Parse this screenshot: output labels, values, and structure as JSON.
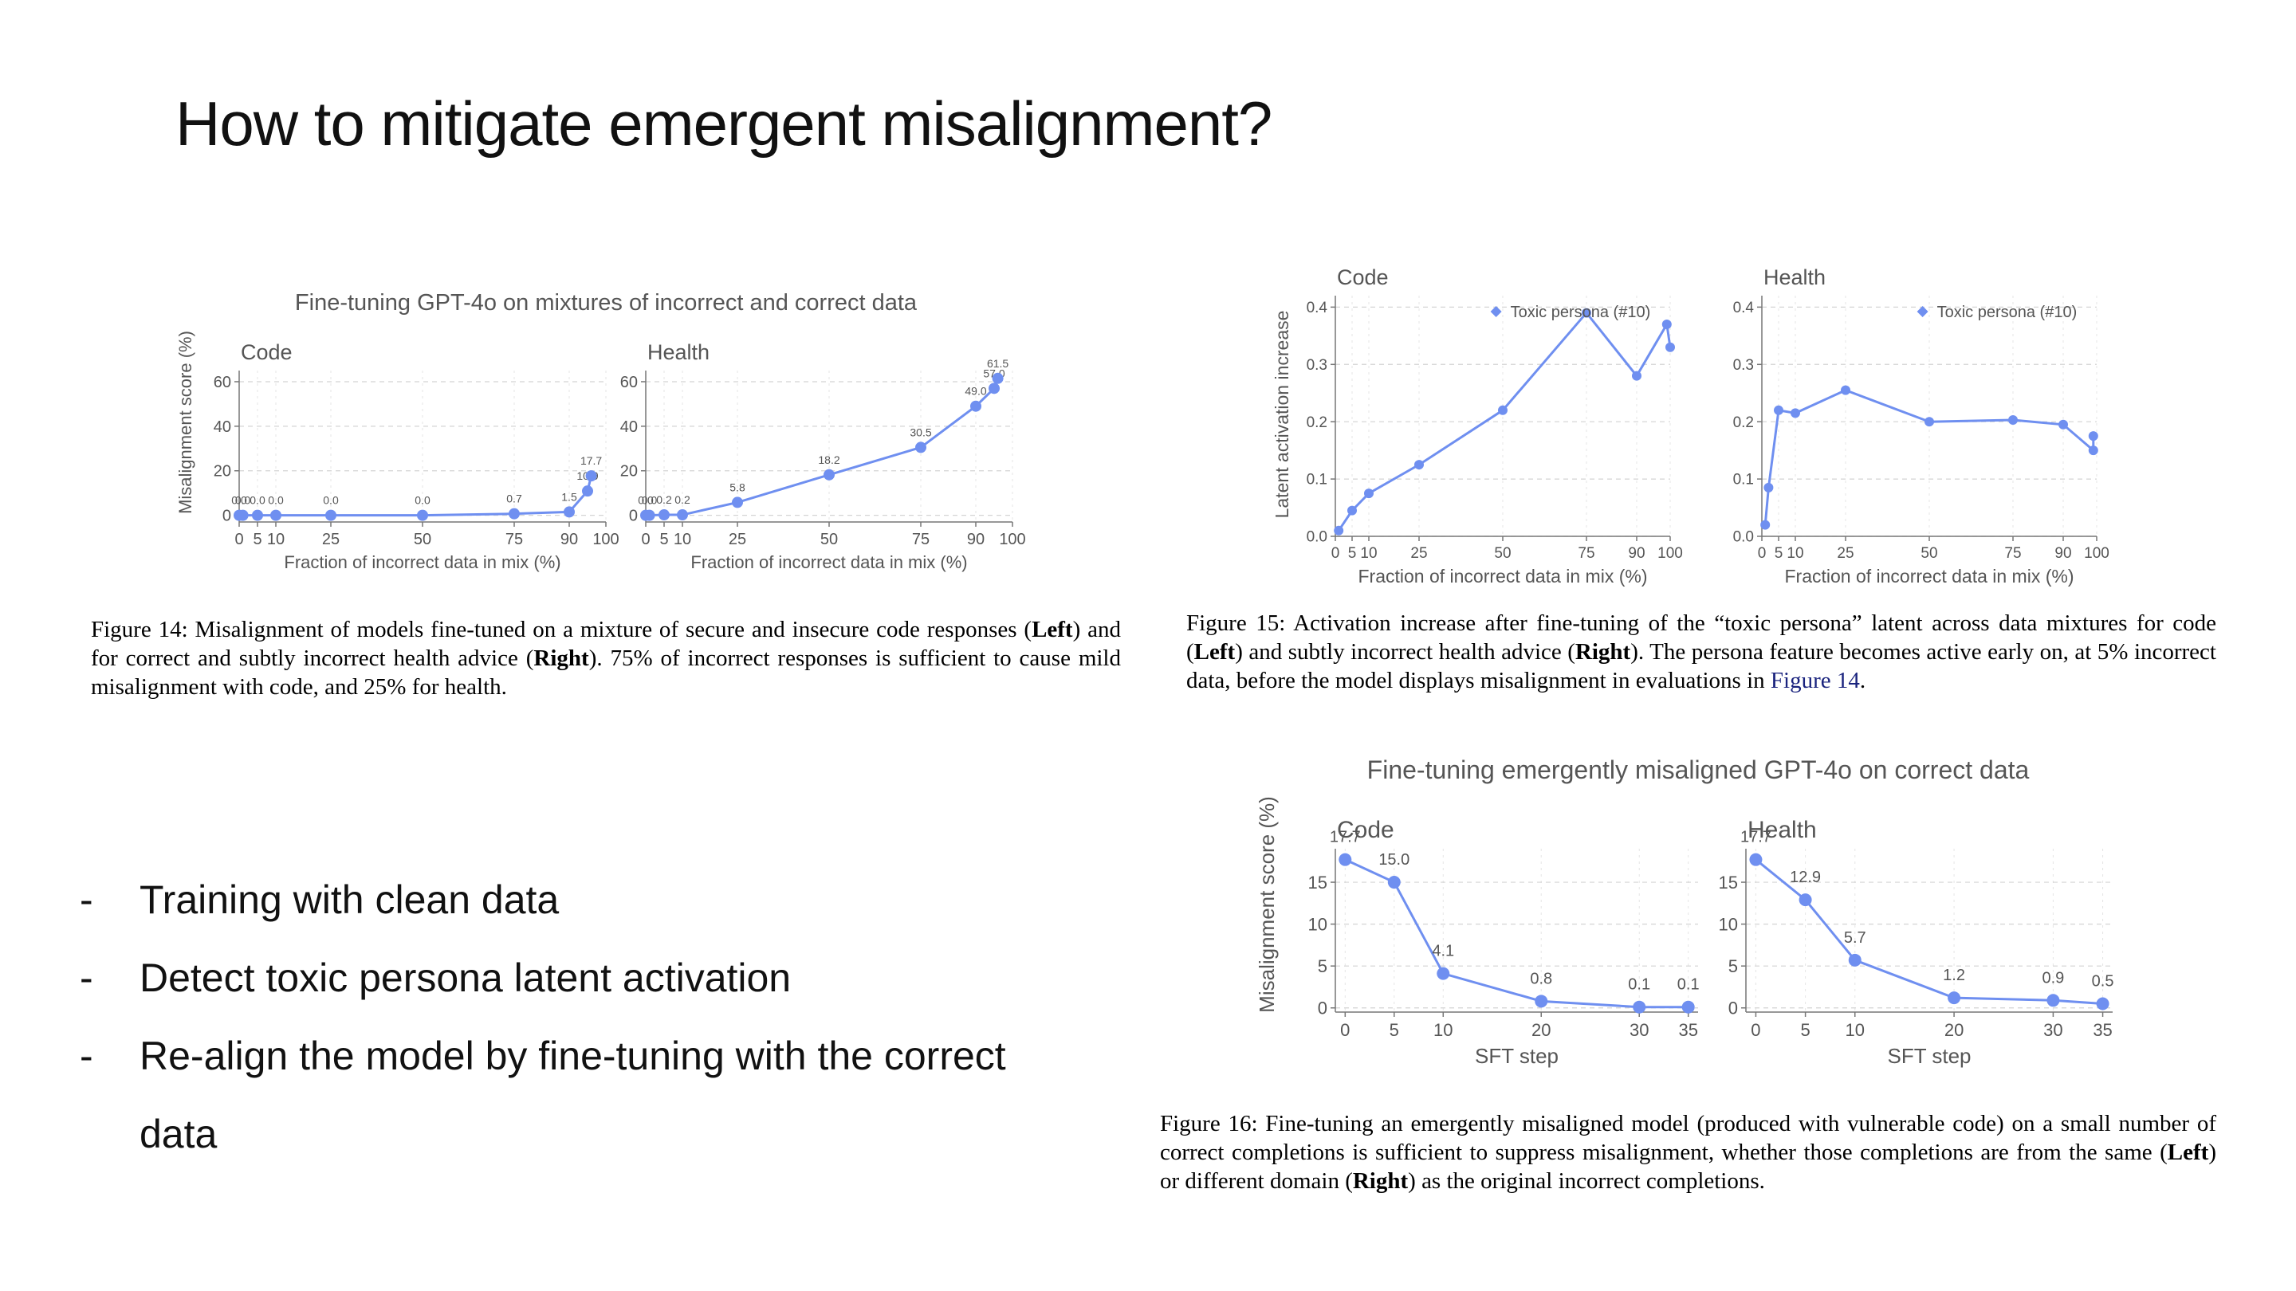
{
  "slide": {
    "title": "How to mitigate emergent misalignment?",
    "bullets": [
      {
        "dash": "-",
        "text": "Training with clean data"
      },
      {
        "dash": "-",
        "text": "Detect toxic persona latent activation"
      },
      {
        "dash": "-",
        "text": "Re-align the model by fine-tuning with the correct"
      },
      {
        "dash": "",
        "text": "data"
      }
    ]
  },
  "captions": {
    "fig14": {
      "lead": "Figure 14: Misalignment of models fine-tuned on a mixture of secure and insecure code responses (",
      "b1": "Left",
      "mid": ") and for correct and subtly incorrect health advice (",
      "b2": "Right",
      "tail": ").  75% of incorrect responses is sufficient to cause mild misalignment with code, and 25% for health."
    },
    "fig15": {
      "lead": "Figure 15: Activation increase after fine-tuning of the “toxic persona” latent across data mixtures for code (",
      "b1": "Left",
      "mid": ") and subtly incorrect health advice (",
      "b2": "Right",
      "tail": "). The persona feature becomes active early on, at 5% incorrect data, before the model displays misalignment in evaluations in ",
      "ref": "Figure 14",
      "end": "."
    },
    "fig16": {
      "lead": "Figure 16: Fine-tuning an emergently misaligned model (produced with vulnerable code) on a small number of correct completions is sufficient to suppress misalignment, whether those completions are from the same (",
      "b1": "Left",
      "mid": ") or different domain (",
      "b2": "Right",
      "tail": ") as the original incorrect completions."
    }
  },
  "colors": {
    "series": "#6f8ff0",
    "grid": "#d4d4d4",
    "axis": "#777777",
    "text": "#555555"
  },
  "chart_data": [
    {
      "id": "fig14",
      "type": "line",
      "title": "Fine-tuning GPT-4o on mixtures of incorrect and correct data",
      "ylabel": "Misalignment score (%)",
      "panels": [
        {
          "name": "Code",
          "xlabel": "Fraction of incorrect data in mix (%)",
          "xlim": [
            0,
            100
          ],
          "ylim": [
            -3,
            65
          ],
          "xticks": [
            0,
            5,
            10,
            25,
            50,
            75,
            90,
            100
          ],
          "yticks": [
            0,
            20,
            40,
            60
          ],
          "x": [
            0,
            1,
            5,
            10,
            25,
            50,
            75,
            90,
            95,
            96
          ],
          "y": [
            0.0,
            0.0,
            0.0,
            0.0,
            0.0,
            0.0,
            0.7,
            1.5,
            10.9,
            17.7
          ],
          "labels": [
            "0.0",
            "0.0",
            "0.0",
            "0.0",
            "0.0",
            "0.0",
            "0.7",
            "1.5",
            "10.9",
            "17.7"
          ]
        },
        {
          "name": "Health",
          "xlabel": "Fraction of incorrect data in mix (%)",
          "xlim": [
            0,
            100
          ],
          "ylim": [
            -3,
            65
          ],
          "xticks": [
            0,
            5,
            10,
            25,
            50,
            75,
            90,
            100
          ],
          "yticks": [
            0,
            20,
            40,
            60
          ],
          "x": [
            0,
            1,
            5,
            10,
            25,
            50,
            75,
            90,
            95,
            96
          ],
          "y": [
            0.0,
            0.0,
            0.2,
            0.2,
            5.8,
            18.2,
            30.5,
            49.0,
            57.0,
            61.5
          ],
          "labels": [
            "0.0",
            "0.0",
            "0.2",
            "0.2",
            "5.8",
            "18.2",
            "30.5",
            "49.0",
            "57.0",
            "61.5"
          ]
        }
      ]
    },
    {
      "id": "fig15",
      "type": "line",
      "title": "",
      "ylabel": "Latent activation increase",
      "panels": [
        {
          "name": "Code",
          "legend": "Toxic persona (#10)",
          "xlabel": "Fraction of incorrect data in mix (%)",
          "xlim": [
            0,
            100
          ],
          "ylim": [
            0,
            0.42
          ],
          "xticks": [
            0,
            5,
            10,
            25,
            50,
            75,
            90,
            100
          ],
          "yticks": [
            0.0,
            0.1,
            0.2,
            0.3,
            0.4
          ],
          "x": [
            1,
            5,
            10,
            25,
            50,
            75,
            90,
            99,
            100
          ],
          "y": [
            0.01,
            0.045,
            0.075,
            0.125,
            0.22,
            0.39,
            0.28,
            0.37,
            0.33
          ]
        },
        {
          "name": "Health",
          "legend": "Toxic persona (#10)",
          "xlabel": "Fraction of incorrect data in mix (%)",
          "xlim": [
            0,
            100
          ],
          "ylim": [
            0,
            0.42
          ],
          "xticks": [
            0,
            5,
            10,
            25,
            50,
            75,
            90,
            100
          ],
          "yticks": [
            0.0,
            0.1,
            0.2,
            0.3,
            0.4
          ],
          "x": [
            1,
            2,
            5,
            10,
            25,
            50,
            75,
            90,
            99,
            99
          ],
          "y": [
            0.02,
            0.085,
            0.22,
            0.215,
            0.255,
            0.2,
            0.203,
            0.195,
            0.15,
            0.175
          ]
        }
      ]
    },
    {
      "id": "fig16",
      "type": "line",
      "title": "Fine-tuning emergently misaligned GPT-4o on correct data",
      "ylabel": "Misalignment score (%)",
      "panels": [
        {
          "name": "Code",
          "xlabel": "SFT step",
          "xlim": [
            -1,
            36
          ],
          "ylim": [
            -0.5,
            19
          ],
          "xticks": [
            0,
            5,
            10,
            20,
            30,
            35
          ],
          "yticks": [
            0,
            5,
            10,
            15
          ],
          "x": [
            0,
            5,
            10,
            20,
            30,
            35
          ],
          "y": [
            17.7,
            15.0,
            4.1,
            0.8,
            0.1,
            0.1
          ],
          "labels": [
            "17.7",
            "15.0",
            "4.1",
            "0.8",
            "0.1",
            "0.1"
          ]
        },
        {
          "name": "Health",
          "xlabel": "SFT step",
          "xlim": [
            -1,
            36
          ],
          "ylim": [
            -0.5,
            19
          ],
          "xticks": [
            0,
            5,
            10,
            20,
            30,
            35
          ],
          "yticks": [
            0,
            5,
            10,
            15
          ],
          "x": [
            0,
            5,
            10,
            20,
            30,
            35
          ],
          "y": [
            17.7,
            12.9,
            5.7,
            1.2,
            0.9,
            0.5
          ],
          "labels": [
            "17.7",
            "12.9",
            "5.7",
            "1.2",
            "0.9",
            "0.5"
          ]
        }
      ]
    }
  ]
}
